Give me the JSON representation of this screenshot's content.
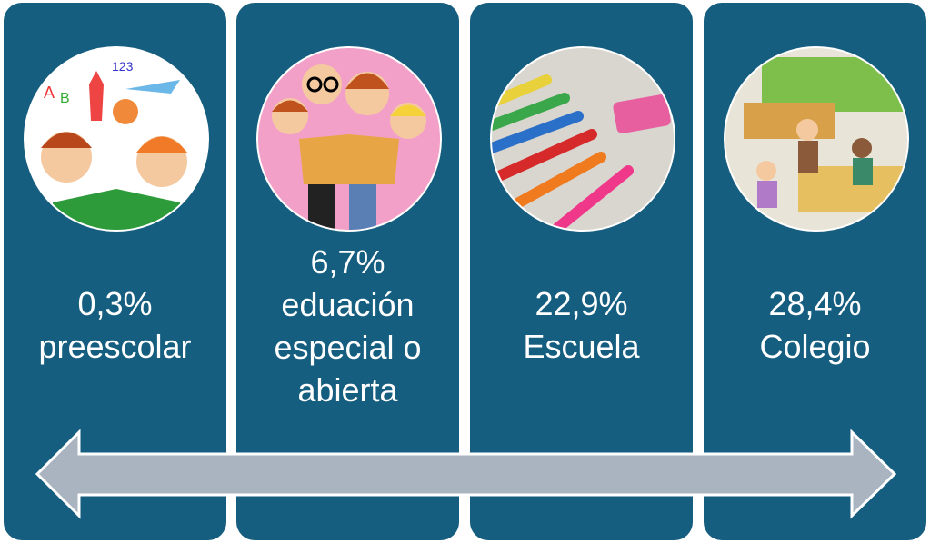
{
  "colors": {
    "panel": "#165e7f",
    "arrow": "#a9b4c0",
    "text": "#ffffff"
  },
  "panels": [
    {
      "percent": "0,3%",
      "lines": [
        "preescolar"
      ],
      "image": "children-reading-illustration"
    },
    {
      "percent": "6,7%",
      "lines": [
        "eduación",
        "especial o",
        "abierta"
      ],
      "image": "family-reading-book-illustration"
    },
    {
      "percent": "22,9%",
      "lines": [
        "Escuela"
      ],
      "image": "colored-pencils-photo"
    },
    {
      "percent": "28,4%",
      "lines": [
        "Colegio"
      ],
      "image": "classroom-illustration"
    }
  ],
  "arrow": {
    "type": "double-headed-arrow"
  }
}
